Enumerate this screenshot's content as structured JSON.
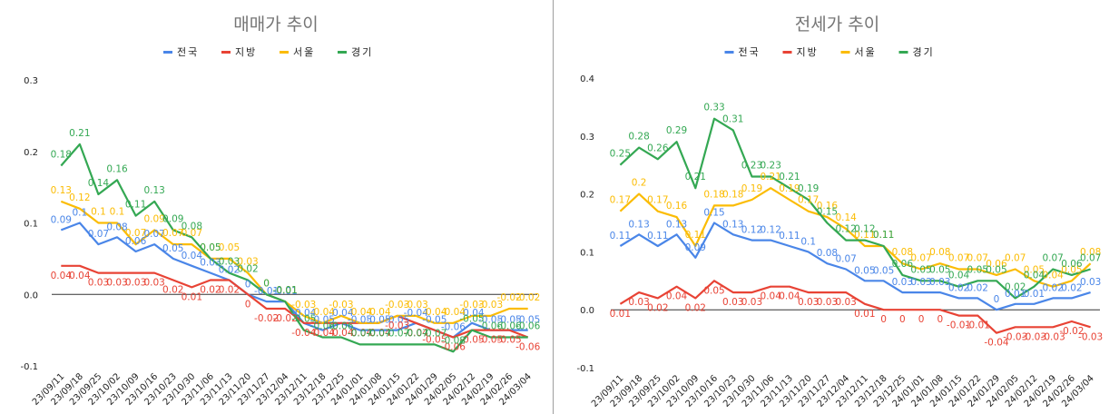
{
  "chart_data": [
    {
      "type": "line",
      "title": "매매가 추이",
      "xlabel": "",
      "ylabel": "",
      "ylim": [
        -0.1,
        0.3
      ],
      "yticks": [
        "0.3",
        "0.2",
        "0.1",
        "0.0",
        "-0.1"
      ],
      "yticks_values": [
        0.3,
        0.2,
        0.1,
        0.0,
        -0.1
      ],
      "grid": false,
      "legend": "top",
      "categories": [
        "23/09/11",
        "23/09/18",
        "23/09/25",
        "23/10/02",
        "23/10/09",
        "23/10/16",
        "23/10/23",
        "23/10/30",
        "23/11/06",
        "23/11/13",
        "23/11/20",
        "23/11/27",
        "23/12/04",
        "23/12/11",
        "23/12/18",
        "23/12/25",
        "24/01/01",
        "24/01/08",
        "24/01/15",
        "24/01/22",
        "24/01/29",
        "24/02/05",
        "24/02/12",
        "24/02/19",
        "24/02/26",
        "24/03/04"
      ],
      "series": [
        {
          "name": "전국",
          "color": "#4a86e8",
          "values": [
            0.09,
            0.1,
            0.07,
            0.08,
            0.06,
            0.07,
            0.05,
            0.04,
            0.03,
            0.02,
            0.0,
            -0.01,
            -0.01,
            -0.04,
            -0.05,
            -0.04,
            -0.05,
            -0.05,
            -0.05,
            -0.04,
            -0.05,
            -0.06,
            -0.04,
            -0.05,
            -0.05,
            -0.05
          ],
          "labels": [
            "0.09",
            "0.1",
            "0.07",
            "0.08",
            "0.06",
            "0.07",
            "0.05",
            "0.04",
            "0.03",
            "0.02",
            "0",
            "-0.01",
            "-0.01",
            "-0.04",
            "-0.05",
            "-0.04",
            "-0.05",
            "-0.05",
            "-0.05",
            "-0.04",
            "-0.05",
            "-0.06",
            "-0.04",
            "-0.05",
            "-0.05",
            "-0.05"
          ]
        },
        {
          "name": "지방",
          "color": "#e84335",
          "values": [
            0.04,
            0.04,
            0.03,
            0.03,
            0.03,
            0.03,
            0.02,
            0.01,
            0.02,
            0.02,
            0.0,
            -0.02,
            -0.02,
            -0.04,
            -0.04,
            -0.04,
            -0.04,
            -0.04,
            -0.03,
            -0.04,
            -0.05,
            -0.06,
            -0.05,
            -0.05,
            -0.05,
            -0.06
          ],
          "labels": [
            "0.04",
            "0.04",
            "0.03",
            "0.03",
            "0.03",
            "0.03",
            "0.02",
            "0.01",
            "0.02",
            "0.02",
            "0",
            "-0.02",
            "-0.02",
            "-0.04",
            "-0.04",
            "-0.04",
            "-0.04",
            "-0.04",
            "-0.03",
            "-0.04",
            "-0.05",
            "-0.06",
            "-0.05",
            "-0.05",
            "-0.05",
            "-0.06"
          ]
        },
        {
          "name": "서울",
          "color": "#fbbc04",
          "values": [
            0.13,
            0.12,
            0.1,
            0.1,
            0.07,
            0.09,
            0.07,
            0.07,
            0.05,
            0.05,
            0.03,
            0.0,
            -0.01,
            -0.03,
            -0.04,
            -0.03,
            -0.04,
            -0.04,
            -0.03,
            -0.03,
            -0.04,
            -0.04,
            -0.03,
            -0.03,
            -0.02,
            -0.02
          ],
          "labels": [
            "0.13",
            "0.12",
            "0.1",
            "0.1",
            "0.07",
            "0.09",
            "0.07",
            "0.07",
            "0.05",
            "0.05",
            "0.03",
            "0",
            "-0.01",
            "-0.03",
            "-0.04",
            "-0.03",
            "-0.04",
            "-0.04",
            "-0.03",
            "-0.03",
            "-0.04",
            "-0.04",
            "-0.03",
            "-0.03",
            "-0.02",
            "-0.02"
          ]
        },
        {
          "name": "경기",
          "color": "#34a853",
          "values": [
            0.18,
            0.21,
            0.14,
            0.16,
            0.11,
            0.13,
            0.09,
            0.08,
            0.05,
            0.03,
            0.02,
            0.0,
            -0.01,
            -0.05,
            -0.06,
            -0.06,
            -0.07,
            -0.07,
            -0.07,
            -0.07,
            -0.07,
            -0.08,
            -0.05,
            -0.06,
            -0.06,
            -0.06
          ],
          "labels": [
            "0.18",
            "0.21",
            "0.14",
            "0.16",
            "0.11",
            "0.13",
            "0.09",
            "0.08",
            "0.05",
            "0.03",
            "0.02",
            "0",
            "-0.01",
            "-0.05",
            "-0.06",
            "-0.06",
            "-0.07",
            "-0.07",
            "-0.07",
            "-0.07",
            "-0.07",
            "-0.08",
            "-0.05",
            "-0.06",
            "-0.06",
            "-0.06"
          ]
        }
      ]
    },
    {
      "type": "line",
      "title": "전세가 추이",
      "xlabel": "",
      "ylabel": "",
      "ylim": [
        -0.1,
        0.4
      ],
      "yticks": [
        "0.4",
        "0.3",
        "0.2",
        "0.1",
        "0.0",
        "-0.1"
      ],
      "yticks_values": [
        0.4,
        0.3,
        0.2,
        0.1,
        0.0,
        -0.1
      ],
      "grid": false,
      "legend": "top",
      "categories": [
        "23/09/11",
        "23/09/18",
        "23/09/25",
        "23/10/02",
        "23/10/09",
        "23/10/16",
        "23/10/23",
        "23/10/30",
        "23/11/06",
        "23/11/13",
        "23/11/20",
        "23/11/27",
        "23/12/04",
        "23/12/11",
        "23/12/18",
        "23/12/25",
        "24/01/01",
        "24/01/08",
        "24/01/15",
        "24/01/22",
        "24/01/29",
        "24/02/05",
        "24/02/12",
        "24/02/19",
        "24/02/26",
        "24/03/04"
      ],
      "series": [
        {
          "name": "전국",
          "color": "#4a86e8",
          "values": [
            0.11,
            0.13,
            0.11,
            0.13,
            0.09,
            0.15,
            0.13,
            0.12,
            0.12,
            0.11,
            0.1,
            0.08,
            0.07,
            0.05,
            0.05,
            0.03,
            0.03,
            0.03,
            0.02,
            0.02,
            0.0,
            0.01,
            0.01,
            0.02,
            0.02,
            0.03
          ],
          "labels": [
            "0.11",
            "0.13",
            "0.11",
            "0.13",
            "0.09",
            "0.15",
            "0.13",
            "0.12",
            "0.12",
            "0.11",
            "0.1",
            "0.08",
            "0.07",
            "0.05",
            "0.05",
            "0.03",
            "0.03",
            "0.03",
            "0.02",
            "0.02",
            "0",
            "0.01",
            "0.01",
            "0.02",
            "0.02",
            "0.03"
          ]
        },
        {
          "name": "지방",
          "color": "#e84335",
          "values": [
            0.01,
            0.03,
            0.02,
            0.04,
            0.02,
            0.05,
            0.03,
            0.03,
            0.04,
            0.04,
            0.03,
            0.03,
            0.03,
            0.01,
            0.0,
            0.0,
            0.0,
            0.0,
            -0.01,
            -0.01,
            -0.04,
            -0.03,
            -0.03,
            -0.03,
            -0.02,
            -0.03
          ],
          "labels": [
            "0.01",
            "0.03",
            "0.02",
            "0.04",
            "0.02",
            "0.05",
            "0.03",
            "0.03",
            "0.04",
            "0.04",
            "0.03",
            "0.03",
            "0.03",
            "0.01",
            "0",
            "0",
            "0",
            "0",
            "-0.01",
            "-0.01",
            "-0.04",
            "-0.03",
            "-0.03",
            "-0.03",
            "-0.02",
            "-0.03"
          ]
        },
        {
          "name": "서울",
          "color": "#fbbc04",
          "values": [
            0.17,
            0.2,
            0.17,
            0.16,
            0.11,
            0.18,
            0.18,
            0.19,
            0.21,
            0.19,
            0.17,
            0.16,
            0.14,
            0.11,
            0.11,
            0.08,
            0.07,
            0.08,
            0.07,
            0.07,
            0.06,
            0.07,
            0.05,
            0.04,
            0.05,
            0.08
          ],
          "labels": [
            "0.17",
            "0.2",
            "0.17",
            "0.16",
            "0.11",
            "0.18",
            "0.18",
            "0.19",
            "0.21",
            "0.19",
            "0.17",
            "0.16",
            "0.14",
            "0.11",
            "0.11",
            "0.08",
            "0.07",
            "0.08",
            "0.07",
            "0.07",
            "0.06",
            "0.07",
            "0.05",
            "0.04",
            "0.05",
            "0.08"
          ]
        },
        {
          "name": "경기",
          "color": "#34a853",
          "values": [
            0.25,
            0.28,
            0.26,
            0.29,
            0.21,
            0.33,
            0.31,
            0.23,
            0.23,
            0.21,
            0.19,
            0.15,
            0.12,
            0.12,
            0.11,
            0.06,
            0.05,
            0.05,
            0.04,
            0.05,
            0.05,
            0.02,
            0.04,
            0.07,
            0.06,
            0.07
          ],
          "labels": [
            "0.25",
            "0.28",
            "0.26",
            "0.29",
            "0.21",
            "0.33",
            "0.31",
            "0.23",
            "0.23",
            "0.21",
            "0.19",
            "0.15",
            "0.12",
            "0.12",
            "0.11",
            "0.06",
            "0.05",
            "0.05",
            "0.04",
            "0.05",
            "0.05",
            "0.02",
            "0.04",
            "0.07",
            "0.06",
            "0.07"
          ]
        }
      ]
    }
  ]
}
